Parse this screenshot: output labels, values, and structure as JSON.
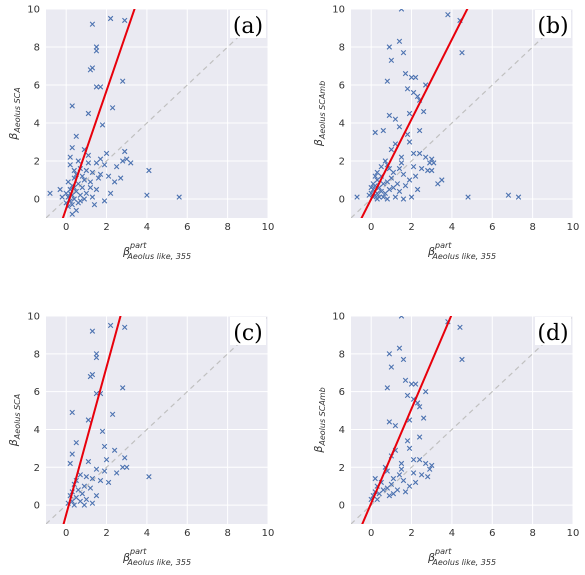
{
  "chart_data": [
    {
      "type": "scatter",
      "panel_label": "(a)",
      "xlabel": {
        "base": "β",
        "sup": "part",
        "sub": "Aeolus like, 355"
      },
      "ylabel": {
        "base": "β",
        "sub": "Aeolus SCA"
      },
      "xlim": [
        -1,
        10
      ],
      "ylim": [
        -1,
        10
      ],
      "xticks": [
        "0",
        "2",
        "4",
        "6",
        "8",
        "10"
      ],
      "yticks": [
        "0",
        "2",
        "4",
        "6",
        "8",
        "10"
      ],
      "grid": true,
      "identity_line": true,
      "fit_line": {
        "slope": 3.1,
        "intercept": -0.5
      },
      "marker": "x",
      "points": [
        [
          1.3,
          9.2
        ],
        [
          2.2,
          9.5
        ],
        [
          2.9,
          9.4
        ],
        [
          1.5,
          8.0
        ],
        [
          1.5,
          7.8
        ],
        [
          1.3,
          6.9
        ],
        [
          1.2,
          6.8
        ],
        [
          2.8,
          6.2
        ],
        [
          1.5,
          5.9
        ],
        [
          1.7,
          5.9
        ],
        [
          0.3,
          4.9
        ],
        [
          2.3,
          4.8
        ],
        [
          1.1,
          4.5
        ],
        [
          1.8,
          3.9
        ],
        [
          0.5,
          3.3
        ],
        [
          0.3,
          2.7
        ],
        [
          2.9,
          2.5
        ],
        [
          2.0,
          2.4
        ],
        [
          1.1,
          2.3
        ],
        [
          0.2,
          2.2
        ],
        [
          2.8,
          2.0
        ],
        [
          1.5,
          1.9
        ],
        [
          1.9,
          1.8
        ],
        [
          2.5,
          1.7
        ],
        [
          0.7,
          1.6
        ],
        [
          1.0,
          1.5
        ],
        [
          1.3,
          1.4
        ],
        [
          0.5,
          1.3
        ],
        [
          1.7,
          1.3
        ],
        [
          2.1,
          1.2
        ],
        [
          0.4,
          1.1
        ],
        [
          0.9,
          1.0
        ],
        [
          1.2,
          0.9
        ],
        [
          0.6,
          0.8
        ],
        [
          0.3,
          0.7
        ],
        [
          0.8,
          0.6
        ],
        [
          1.5,
          0.5
        ],
        [
          0.2,
          0.5
        ],
        [
          0.5,
          0.4
        ],
        [
          1.0,
          0.3
        ],
        [
          0.3,
          0.2
        ],
        [
          0.7,
          0.2
        ],
        [
          1.3,
          0.1
        ],
        [
          0.1,
          0.1
        ],
        [
          0.4,
          0.0
        ],
        [
          0.9,
          0.0
        ],
        [
          0.2,
          -0.1
        ],
        [
          0.6,
          -0.2
        ],
        [
          1.4,
          -0.3
        ],
        [
          0.3,
          -0.3
        ],
        [
          0.0,
          0.3
        ],
        [
          -0.2,
          0.1
        ],
        [
          -0.3,
          0.5
        ],
        [
          -0.8,
          0.3
        ],
        [
          0.1,
          0.9
        ],
        [
          0.4,
          1.5
        ],
        [
          0.2,
          1.8
        ],
        [
          0.6,
          2.0
        ],
        [
          1.1,
          1.9
        ],
        [
          1.6,
          1.1
        ],
        [
          2.4,
          0.9
        ],
        [
          2.7,
          1.1
        ],
        [
          3.0,
          2.1
        ],
        [
          3.2,
          1.9
        ],
        [
          4.1,
          1.5
        ],
        [
          4.0,
          0.2
        ],
        [
          5.6,
          0.1
        ],
        [
          0.1,
          -0.4
        ],
        [
          0.5,
          -0.6
        ],
        [
          0.3,
          -0.8
        ],
        [
          1.2,
          0.6
        ],
        [
          0.8,
          1.2
        ],
        [
          0.9,
          2.6
        ],
        [
          1.7,
          2.1
        ],
        [
          2.2,
          0.3
        ],
        [
          1.9,
          -0.1
        ],
        [
          0.4,
          0.6
        ],
        [
          0.7,
          -0.1
        ],
        [
          0.0,
          -0.2
        ],
        [
          0.2,
          0.3
        ]
      ]
    },
    {
      "type": "scatter",
      "panel_label": "(b)",
      "xlabel": {
        "base": "β",
        "sup": "part",
        "sub": "Aeolus like, 355"
      },
      "ylabel": {
        "base": "β",
        "sub": "Aeolus SCAmb"
      },
      "xlim": [
        -1,
        10
      ],
      "ylim": [
        -1,
        10
      ],
      "xticks": [
        "0",
        "2",
        "4",
        "6",
        "8",
        "10"
      ],
      "yticks": [
        "0",
        "2",
        "4",
        "6",
        "8",
        "10"
      ],
      "grid": true,
      "identity_line": true,
      "fit_line": {
        "slope": 2.1,
        "intercept": 0.0
      },
      "marker": "x",
      "points": [
        [
          3.8,
          9.7
        ],
        [
          4.4,
          9.4
        ],
        [
          1.5,
          10.0
        ],
        [
          1.4,
          8.3
        ],
        [
          0.9,
          8.0
        ],
        [
          1.6,
          7.7
        ],
        [
          4.5,
          7.7
        ],
        [
          1.0,
          7.3
        ],
        [
          1.7,
          6.6
        ],
        [
          2.0,
          6.4
        ],
        [
          2.2,
          6.4
        ],
        [
          0.8,
          6.2
        ],
        [
          2.7,
          6.0
        ],
        [
          1.8,
          5.8
        ],
        [
          2.1,
          5.6
        ],
        [
          2.3,
          5.4
        ],
        [
          2.4,
          5.2
        ],
        [
          2.6,
          4.6
        ],
        [
          1.9,
          4.5
        ],
        [
          0.9,
          4.4
        ],
        [
          1.2,
          4.2
        ],
        [
          2.4,
          3.6
        ],
        [
          0.6,
          3.6
        ],
        [
          1.9,
          3.0
        ],
        [
          1.2,
          2.9
        ],
        [
          2.1,
          2.4
        ],
        [
          3.0,
          2.1
        ],
        [
          2.9,
          1.9
        ],
        [
          1.5,
          2.2
        ],
        [
          0.8,
          1.8
        ],
        [
          1.4,
          1.6
        ],
        [
          2.1,
          1.7
        ],
        [
          2.5,
          1.6
        ],
        [
          2.8,
          1.5
        ],
        [
          1.1,
          1.4
        ],
        [
          1.6,
          1.3
        ],
        [
          2.2,
          1.2
        ],
        [
          0.5,
          1.2
        ],
        [
          1.0,
          1.1
        ],
        [
          1.9,
          1.0
        ],
        [
          0.3,
          1.0
        ],
        [
          0.8,
          0.9
        ],
        [
          1.3,
          0.8
        ],
        [
          0.6,
          0.8
        ],
        [
          1.7,
          0.7
        ],
        [
          0.2,
          0.7
        ],
        [
          1.1,
          0.6
        ],
        [
          0.4,
          0.6
        ],
        [
          0.9,
          0.5
        ],
        [
          2.3,
          0.5
        ],
        [
          0.1,
          0.5
        ],
        [
          0.5,
          0.4
        ],
        [
          1.4,
          0.4
        ],
        [
          0.3,
          0.3
        ],
        [
          0.7,
          0.3
        ],
        [
          0.0,
          0.3
        ],
        [
          0.2,
          0.2
        ],
        [
          0.4,
          0.1
        ],
        [
          0.6,
          0.1
        ],
        [
          1.2,
          0.1
        ],
        [
          0.1,
          0.1
        ],
        [
          0.3,
          0.0
        ],
        [
          0.8,
          0.0
        ],
        [
          1.6,
          0.0
        ],
        [
          -0.7,
          0.1
        ],
        [
          2.0,
          0.1
        ],
        [
          3.5,
          1.0
        ],
        [
          3.3,
          0.8
        ],
        [
          3.1,
          1.9
        ],
        [
          3.0,
          1.5
        ],
        [
          4.8,
          0.1
        ],
        [
          6.8,
          0.2
        ],
        [
          7.3,
          0.1
        ],
        [
          1.4,
          3.8
        ],
        [
          1.8,
          3.4
        ],
        [
          1.0,
          2.6
        ],
        [
          0.7,
          2.0
        ],
        [
          0.5,
          1.7
        ],
        [
          0.3,
          1.4
        ],
        [
          0.1,
          0.8
        ],
        [
          0.0,
          0.6
        ],
        [
          -0.1,
          0.2
        ],
        [
          0.2,
          1.2
        ],
        [
          0.9,
          1.6
        ],
        [
          1.5,
          1.9
        ],
        [
          2.7,
          2.2
        ],
        [
          2.4,
          2.4
        ],
        [
          0.2,
          3.5
        ]
      ]
    },
    {
      "type": "scatter",
      "panel_label": "(c)",
      "xlabel": {
        "base": "β",
        "sup": "part",
        "sub": "Aeolus like, 355"
      },
      "ylabel": {
        "base": "β",
        "sub": "Aeolus SCA"
      },
      "xlim": [
        -1,
        10
      ],
      "ylim": [
        -1,
        10
      ],
      "xticks": [
        "0",
        "2",
        "4",
        "6",
        "8",
        "10"
      ],
      "yticks": [
        "0",
        "2",
        "4",
        "6",
        "8",
        "10"
      ],
      "grid": true,
      "identity_line": true,
      "fit_line": {
        "slope": 3.9,
        "intercept": -0.5
      },
      "marker": "x",
      "points": [
        [
          1.3,
          9.2
        ],
        [
          2.2,
          9.5
        ],
        [
          2.9,
          9.4
        ],
        [
          1.5,
          8.0
        ],
        [
          1.5,
          7.8
        ],
        [
          1.3,
          6.9
        ],
        [
          1.2,
          6.8
        ],
        [
          2.8,
          6.2
        ],
        [
          1.5,
          5.9
        ],
        [
          1.7,
          5.9
        ],
        [
          0.3,
          4.9
        ],
        [
          2.3,
          4.8
        ],
        [
          1.1,
          4.5
        ],
        [
          1.8,
          3.9
        ],
        [
          0.5,
          3.3
        ],
        [
          0.3,
          2.7
        ],
        [
          2.9,
          2.5
        ],
        [
          2.0,
          2.4
        ],
        [
          1.1,
          2.3
        ],
        [
          0.2,
          2.2
        ],
        [
          2.8,
          2.0
        ],
        [
          1.5,
          1.9
        ],
        [
          1.9,
          1.8
        ],
        [
          2.5,
          1.7
        ],
        [
          0.7,
          1.6
        ],
        [
          1.0,
          1.5
        ],
        [
          1.3,
          1.4
        ],
        [
          0.5,
          1.3
        ],
        [
          1.7,
          1.3
        ],
        [
          2.1,
          1.2
        ],
        [
          0.4,
          1.1
        ],
        [
          0.9,
          1.0
        ],
        [
          1.2,
          0.9
        ],
        [
          0.6,
          0.8
        ],
        [
          0.3,
          0.7
        ],
        [
          0.8,
          0.6
        ],
        [
          1.5,
          0.5
        ],
        [
          0.2,
          0.5
        ],
        [
          0.5,
          0.4
        ],
        [
          1.0,
          0.3
        ],
        [
          0.3,
          0.2
        ],
        [
          0.7,
          0.2
        ],
        [
          1.3,
          0.1
        ],
        [
          0.1,
          0.1
        ],
        [
          0.4,
          0.0
        ],
        [
          0.9,
          0.0
        ],
        [
          4.1,
          1.5
        ],
        [
          3.0,
          2.0
        ],
        [
          2.4,
          2.9
        ],
        [
          1.9,
          3.1
        ]
      ]
    },
    {
      "type": "scatter",
      "panel_label": "(d)",
      "xlabel": {
        "base": "β",
        "sup": "part",
        "sub": "Aeolus like, 355"
      },
      "ylabel": {
        "base": "β",
        "sub": "Aeolus SCAmb"
      },
      "xlim": [
        -1,
        10
      ],
      "ylim": [
        -1,
        10
      ],
      "xticks": [
        "0",
        "2",
        "4",
        "6",
        "8",
        "10"
      ],
      "yticks": [
        "0",
        "2",
        "4",
        "6",
        "8",
        "10"
      ],
      "grid": true,
      "identity_line": true,
      "fit_line": {
        "slope": 2.5,
        "intercept": 0.1
      },
      "marker": "x",
      "points": [
        [
          3.8,
          9.7
        ],
        [
          4.4,
          9.4
        ],
        [
          1.5,
          10.0
        ],
        [
          1.4,
          8.3
        ],
        [
          0.9,
          8.0
        ],
        [
          1.6,
          7.7
        ],
        [
          4.5,
          7.7
        ],
        [
          1.0,
          7.3
        ],
        [
          1.7,
          6.6
        ],
        [
          2.0,
          6.4
        ],
        [
          2.2,
          6.4
        ],
        [
          0.8,
          6.2
        ],
        [
          2.7,
          6.0
        ],
        [
          1.8,
          5.8
        ],
        [
          2.1,
          5.6
        ],
        [
          2.3,
          5.4
        ],
        [
          2.4,
          5.2
        ],
        [
          2.6,
          4.6
        ],
        [
          1.9,
          4.5
        ],
        [
          0.9,
          4.4
        ],
        [
          1.2,
          4.2
        ],
        [
          2.4,
          3.6
        ],
        [
          1.9,
          3.0
        ],
        [
          1.2,
          2.9
        ],
        [
          2.1,
          2.4
        ],
        [
          3.0,
          2.1
        ],
        [
          2.9,
          1.9
        ],
        [
          1.5,
          2.2
        ],
        [
          0.8,
          1.8
        ],
        [
          1.4,
          1.6
        ],
        [
          2.1,
          1.7
        ],
        [
          2.5,
          1.6
        ],
        [
          2.8,
          1.5
        ],
        [
          1.1,
          1.4
        ],
        [
          1.6,
          1.3
        ],
        [
          2.2,
          1.2
        ],
        [
          0.5,
          1.2
        ],
        [
          1.0,
          1.1
        ],
        [
          1.9,
          1.0
        ],
        [
          0.3,
          1.0
        ],
        [
          0.8,
          0.9
        ],
        [
          1.3,
          0.8
        ],
        [
          0.6,
          0.8
        ],
        [
          1.7,
          0.7
        ],
        [
          0.2,
          0.7
        ],
        [
          1.1,
          0.6
        ],
        [
          0.4,
          0.6
        ],
        [
          0.9,
          0.5
        ],
        [
          0.1,
          0.5
        ],
        [
          0.3,
          0.3
        ],
        [
          0.0,
          0.3
        ],
        [
          0.2,
          1.4
        ],
        [
          1.5,
          1.9
        ],
        [
          2.7,
          2.2
        ],
        [
          2.4,
          2.4
        ],
        [
          1.8,
          3.4
        ],
        [
          1.0,
          2.6
        ],
        [
          0.7,
          2.0
        ]
      ]
    }
  ],
  "colors": {
    "axes_bg": "#eaeaf2",
    "grid": "#ffffff",
    "marker": "#4c72b0",
    "fit_line": "#e8000b",
    "identity_line": "#c0c0c0"
  }
}
